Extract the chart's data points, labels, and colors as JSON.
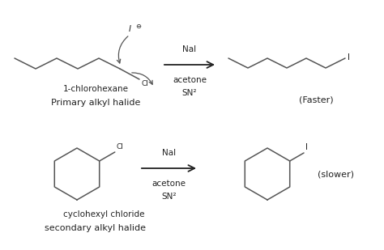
{
  "bg_color": "#ffffff",
  "line_color": "#555555",
  "text_color": "#222222",
  "fig_width": 4.74,
  "fig_height": 3.09,
  "dpi": 100,
  "top_reaction": {
    "reagent": "NaI",
    "solvent": "acetone",
    "mechanism": "SN²",
    "reactant_label": "1-chlorohexane",
    "reactant_sublabel": "Primary alkyl halide",
    "product_label": "(Faster)",
    "nucleophile": "I",
    "leaving_group": "Cl"
  },
  "bottom_reaction": {
    "reagent": "NaI",
    "solvent": "acetone",
    "mechanism": "SN²",
    "reactant_label": "cyclohexyl chloride",
    "reactant_sublabel": "secondary alkyl halide",
    "product_label": "(slower)",
    "nucleophile": "I",
    "leaving_group": "Cl"
  }
}
